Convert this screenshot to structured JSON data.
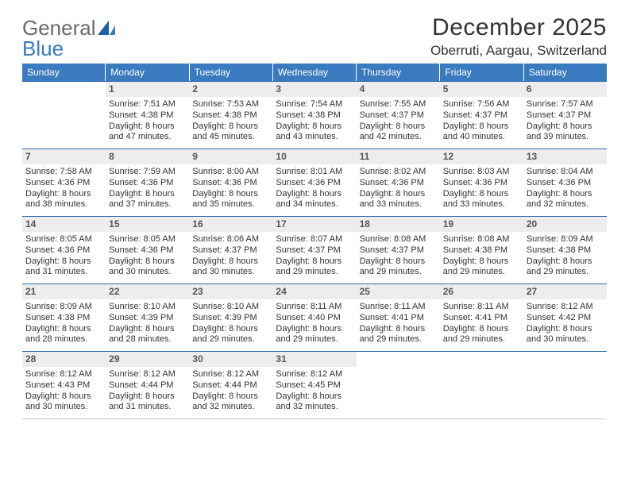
{
  "brand": {
    "general": "General",
    "blue": "Blue"
  },
  "title": "December 2025",
  "location": "Oberruti, Aargau, Switzerland",
  "colors": {
    "header_bg": "#3a7abf",
    "header_text": "#ffffff",
    "daynum_bg": "#ededed",
    "week_border": "#2e6aa8",
    "body_text": "#333333",
    "logo_gray": "#6a6a6a",
    "logo_blue": "#3a7abf",
    "page_bg": "#ffffff"
  },
  "day_headers": [
    "Sunday",
    "Monday",
    "Tuesday",
    "Wednesday",
    "Thursday",
    "Friday",
    "Saturday"
  ],
  "weeks": [
    [
      {
        "empty": true
      },
      {
        "n": "1",
        "sr": "Sunrise: 7:51 AM",
        "ss": "Sunset: 4:38 PM",
        "d1": "Daylight: 8 hours",
        "d2": "and 47 minutes."
      },
      {
        "n": "2",
        "sr": "Sunrise: 7:53 AM",
        "ss": "Sunset: 4:38 PM",
        "d1": "Daylight: 8 hours",
        "d2": "and 45 minutes."
      },
      {
        "n": "3",
        "sr": "Sunrise: 7:54 AM",
        "ss": "Sunset: 4:38 PM",
        "d1": "Daylight: 8 hours",
        "d2": "and 43 minutes."
      },
      {
        "n": "4",
        "sr": "Sunrise: 7:55 AM",
        "ss": "Sunset: 4:37 PM",
        "d1": "Daylight: 8 hours",
        "d2": "and 42 minutes."
      },
      {
        "n": "5",
        "sr": "Sunrise: 7:56 AM",
        "ss": "Sunset: 4:37 PM",
        "d1": "Daylight: 8 hours",
        "d2": "and 40 minutes."
      },
      {
        "n": "6",
        "sr": "Sunrise: 7:57 AM",
        "ss": "Sunset: 4:37 PM",
        "d1": "Daylight: 8 hours",
        "d2": "and 39 minutes."
      }
    ],
    [
      {
        "n": "7",
        "sr": "Sunrise: 7:58 AM",
        "ss": "Sunset: 4:36 PM",
        "d1": "Daylight: 8 hours",
        "d2": "and 38 minutes."
      },
      {
        "n": "8",
        "sr": "Sunrise: 7:59 AM",
        "ss": "Sunset: 4:36 PM",
        "d1": "Daylight: 8 hours",
        "d2": "and 37 minutes."
      },
      {
        "n": "9",
        "sr": "Sunrise: 8:00 AM",
        "ss": "Sunset: 4:36 PM",
        "d1": "Daylight: 8 hours",
        "d2": "and 35 minutes."
      },
      {
        "n": "10",
        "sr": "Sunrise: 8:01 AM",
        "ss": "Sunset: 4:36 PM",
        "d1": "Daylight: 8 hours",
        "d2": "and 34 minutes."
      },
      {
        "n": "11",
        "sr": "Sunrise: 8:02 AM",
        "ss": "Sunset: 4:36 PM",
        "d1": "Daylight: 8 hours",
        "d2": "and 33 minutes."
      },
      {
        "n": "12",
        "sr": "Sunrise: 8:03 AM",
        "ss": "Sunset: 4:36 PM",
        "d1": "Daylight: 8 hours",
        "d2": "and 33 minutes."
      },
      {
        "n": "13",
        "sr": "Sunrise: 8:04 AM",
        "ss": "Sunset: 4:36 PM",
        "d1": "Daylight: 8 hours",
        "d2": "and 32 minutes."
      }
    ],
    [
      {
        "n": "14",
        "sr": "Sunrise: 8:05 AM",
        "ss": "Sunset: 4:36 PM",
        "d1": "Daylight: 8 hours",
        "d2": "and 31 minutes."
      },
      {
        "n": "15",
        "sr": "Sunrise: 8:05 AM",
        "ss": "Sunset: 4:36 PM",
        "d1": "Daylight: 8 hours",
        "d2": "and 30 minutes."
      },
      {
        "n": "16",
        "sr": "Sunrise: 8:06 AM",
        "ss": "Sunset: 4:37 PM",
        "d1": "Daylight: 8 hours",
        "d2": "and 30 minutes."
      },
      {
        "n": "17",
        "sr": "Sunrise: 8:07 AM",
        "ss": "Sunset: 4:37 PM",
        "d1": "Daylight: 8 hours",
        "d2": "and 29 minutes."
      },
      {
        "n": "18",
        "sr": "Sunrise: 8:08 AM",
        "ss": "Sunset: 4:37 PM",
        "d1": "Daylight: 8 hours",
        "d2": "and 29 minutes."
      },
      {
        "n": "19",
        "sr": "Sunrise: 8:08 AM",
        "ss": "Sunset: 4:38 PM",
        "d1": "Daylight: 8 hours",
        "d2": "and 29 minutes."
      },
      {
        "n": "20",
        "sr": "Sunrise: 8:09 AM",
        "ss": "Sunset: 4:38 PM",
        "d1": "Daylight: 8 hours",
        "d2": "and 29 minutes."
      }
    ],
    [
      {
        "n": "21",
        "sr": "Sunrise: 8:09 AM",
        "ss": "Sunset: 4:38 PM",
        "d1": "Daylight: 8 hours",
        "d2": "and 28 minutes."
      },
      {
        "n": "22",
        "sr": "Sunrise: 8:10 AM",
        "ss": "Sunset: 4:39 PM",
        "d1": "Daylight: 8 hours",
        "d2": "and 28 minutes."
      },
      {
        "n": "23",
        "sr": "Sunrise: 8:10 AM",
        "ss": "Sunset: 4:39 PM",
        "d1": "Daylight: 8 hours",
        "d2": "and 29 minutes."
      },
      {
        "n": "24",
        "sr": "Sunrise: 8:11 AM",
        "ss": "Sunset: 4:40 PM",
        "d1": "Daylight: 8 hours",
        "d2": "and 29 minutes."
      },
      {
        "n": "25",
        "sr": "Sunrise: 8:11 AM",
        "ss": "Sunset: 4:41 PM",
        "d1": "Daylight: 8 hours",
        "d2": "and 29 minutes."
      },
      {
        "n": "26",
        "sr": "Sunrise: 8:11 AM",
        "ss": "Sunset: 4:41 PM",
        "d1": "Daylight: 8 hours",
        "d2": "and 29 minutes."
      },
      {
        "n": "27",
        "sr": "Sunrise: 8:12 AM",
        "ss": "Sunset: 4:42 PM",
        "d1": "Daylight: 8 hours",
        "d2": "and 30 minutes."
      }
    ],
    [
      {
        "n": "28",
        "sr": "Sunrise: 8:12 AM",
        "ss": "Sunset: 4:43 PM",
        "d1": "Daylight: 8 hours",
        "d2": "and 30 minutes."
      },
      {
        "n": "29",
        "sr": "Sunrise: 8:12 AM",
        "ss": "Sunset: 4:44 PM",
        "d1": "Daylight: 8 hours",
        "d2": "and 31 minutes."
      },
      {
        "n": "30",
        "sr": "Sunrise: 8:12 AM",
        "ss": "Sunset: 4:44 PM",
        "d1": "Daylight: 8 hours",
        "d2": "and 32 minutes."
      },
      {
        "n": "31",
        "sr": "Sunrise: 8:12 AM",
        "ss": "Sunset: 4:45 PM",
        "d1": "Daylight: 8 hours",
        "d2": "and 32 minutes."
      },
      {
        "empty": true
      },
      {
        "empty": true
      },
      {
        "empty": true
      }
    ]
  ]
}
